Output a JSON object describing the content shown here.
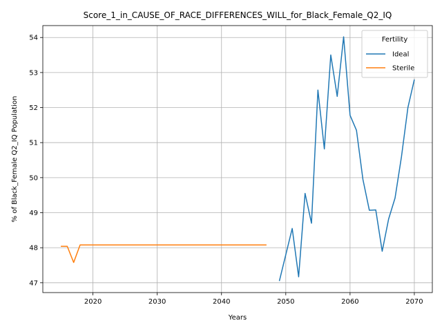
{
  "chart_data": {
    "type": "line",
    "title": "Score_1_in_CAUSE_OF_RACE_DIFFERENCES_WILL_for_Black_Female_Q2_IQ",
    "xlabel": "Years",
    "ylabel": "% of Black_Female Q2_IQ Population",
    "xlim": [
      2012.2,
      2072.8
    ],
    "ylim": [
      46.72,
      54.34
    ],
    "xticks": [
      2020,
      2030,
      2040,
      2050,
      2060,
      2070
    ],
    "yticks": [
      47,
      48,
      49,
      50,
      51,
      52,
      53,
      54
    ],
    "grid": true,
    "legend": {
      "title": "Fertility",
      "placement": "top-right"
    },
    "series": [
      {
        "name": "Ideal",
        "color": "#1f77b4",
        "x": [
          2049,
          2050,
          2051,
          2052,
          2053,
          2054,
          2055,
          2056,
          2057,
          2058,
          2059,
          2060,
          2061,
          2062,
          2063,
          2064,
          2065,
          2066,
          2067,
          2068,
          2069,
          2070
        ],
        "y": [
          47.05,
          47.8,
          48.55,
          47.17,
          49.55,
          48.7,
          52.5,
          50.82,
          53.5,
          52.32,
          54.02,
          51.78,
          51.35,
          49.95,
          49.07,
          49.08,
          47.9,
          48.82,
          49.42,
          50.6,
          52.0,
          52.8
        ]
      },
      {
        "name": "Sterile",
        "color": "#ff7f0e",
        "x": [
          2015,
          2016,
          2017,
          2018,
          2019,
          2020,
          2021,
          2022,
          2023,
          2024,
          2025,
          2026,
          2027,
          2028,
          2029,
          2030,
          2031,
          2032,
          2033,
          2034,
          2035,
          2036,
          2037,
          2038,
          2039,
          2040,
          2041,
          2042,
          2043,
          2044,
          2045,
          2046,
          2047
        ],
        "y": [
          48.04,
          48.04,
          47.58,
          48.08,
          48.08,
          48.08,
          48.08,
          48.08,
          48.08,
          48.08,
          48.08,
          48.08,
          48.08,
          48.08,
          48.08,
          48.08,
          48.08,
          48.08,
          48.08,
          48.08,
          48.08,
          48.08,
          48.08,
          48.08,
          48.08,
          48.08,
          48.08,
          48.08,
          48.08,
          48.08,
          48.08,
          48.08,
          48.08
        ]
      }
    ]
  }
}
